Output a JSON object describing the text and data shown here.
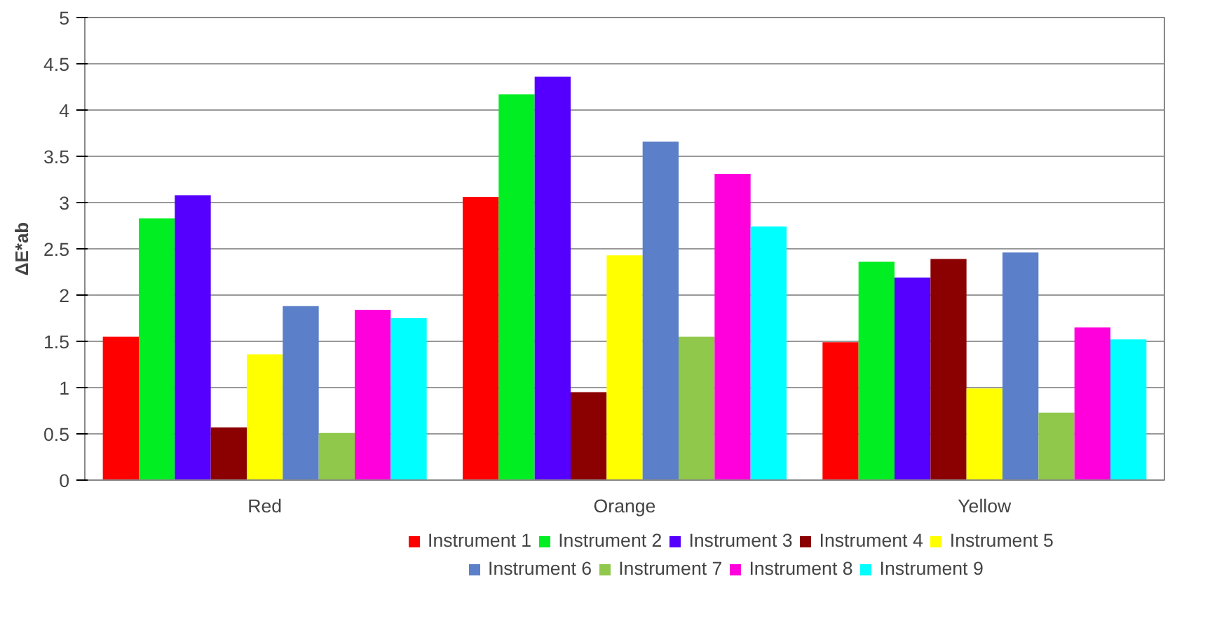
{
  "chart_data": {
    "type": "bar",
    "ylabel": "ΔE*ab",
    "categories": [
      "Red",
      "Orange",
      "Yellow"
    ],
    "ylim": [
      0,
      5
    ],
    "yticks": [
      0,
      0.5,
      1,
      1.5,
      2,
      2.5,
      3,
      3.5,
      4,
      4.5,
      5
    ],
    "grid": "y",
    "legend": "bottom",
    "series": [
      {
        "name": "Instrument 1",
        "color": "#ff0000",
        "values": [
          1.55,
          3.06,
          1.49
        ]
      },
      {
        "name": "Instrument 2",
        "color": "#00ee22",
        "values": [
          2.83,
          4.17,
          2.36
        ]
      },
      {
        "name": "Instrument 3",
        "color": "#5500ff",
        "values": [
          3.08,
          4.36,
          2.19
        ]
      },
      {
        "name": "Instrument 4",
        "color": "#8b0000",
        "values": [
          0.57,
          0.95,
          2.39
        ]
      },
      {
        "name": "Instrument 5",
        "color": "#ffff00",
        "values": [
          1.36,
          2.43,
          0.99
        ]
      },
      {
        "name": "Instrument 6",
        "color": "#5b7fc8",
        "values": [
          1.88,
          3.66,
          2.46
        ]
      },
      {
        "name": "Instrument 7",
        "color": "#8fc84a",
        "values": [
          0.51,
          1.55,
          0.73
        ]
      },
      {
        "name": "Instrument 8",
        "color": "#ff00dd",
        "values": [
          1.84,
          3.31,
          1.65
        ]
      },
      {
        "name": "Instrument 9",
        "color": "#00ffff",
        "values": [
          1.75,
          2.74,
          1.52
        ]
      }
    ]
  }
}
